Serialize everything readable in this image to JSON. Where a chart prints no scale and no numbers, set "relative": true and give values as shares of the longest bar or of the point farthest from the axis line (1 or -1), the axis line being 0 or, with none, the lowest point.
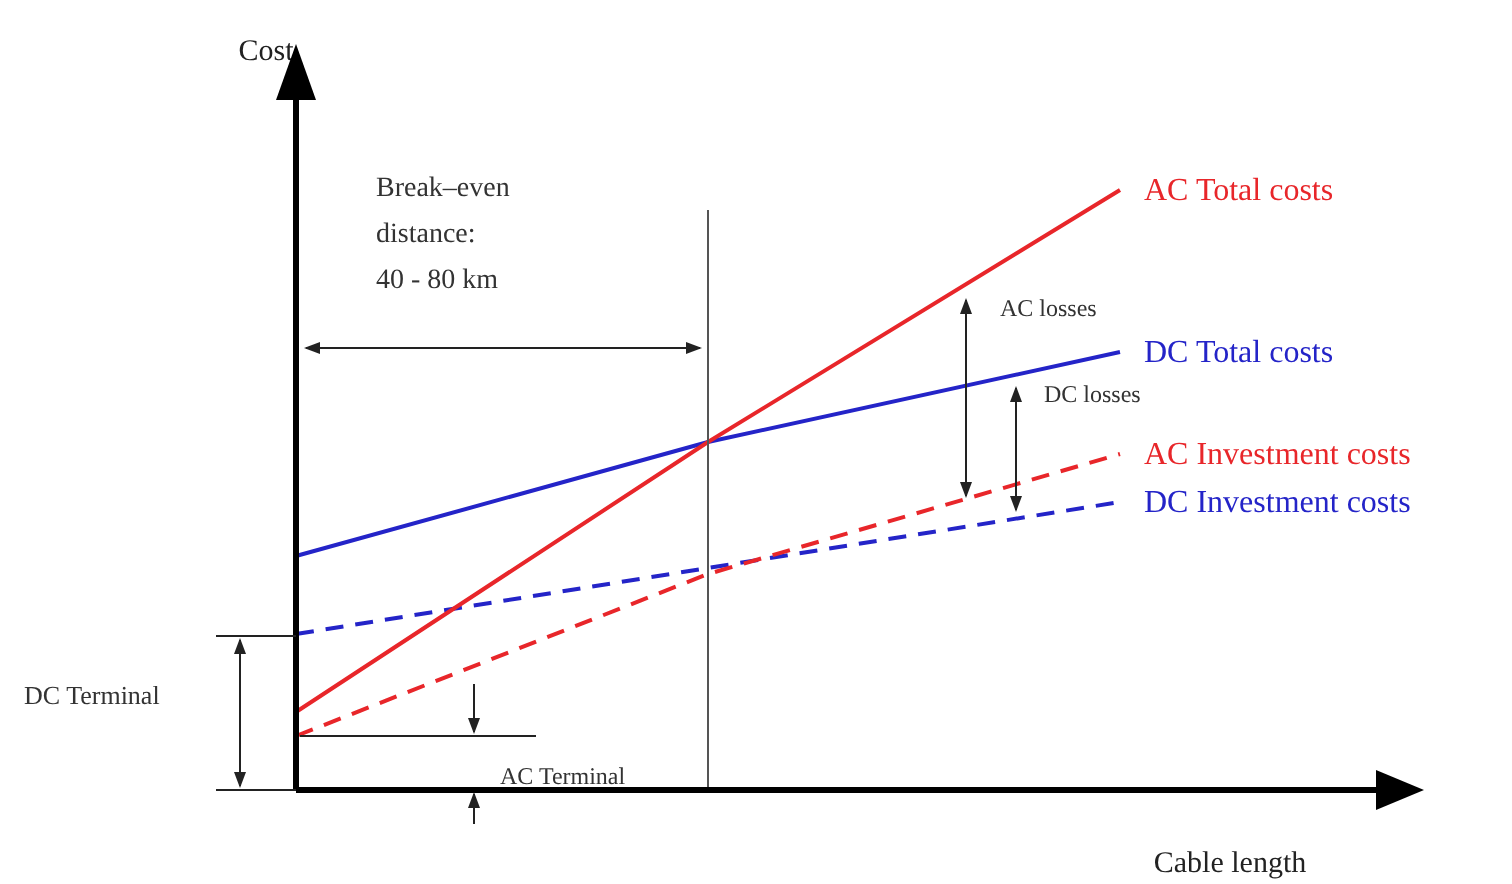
{
  "chart_data": {
    "type": "line",
    "relative": true,
    "xlabel": "Cable length",
    "ylabel": "Cost",
    "categories": [
      null,
      null,
      null
    ],
    "series": [
      {
        "name": "AC Total costs",
        "color": "#e8262a",
        "values": [
          0.13,
          0.58,
          1
        ],
        "line_style": "solid"
      },
      {
        "name": "DC Total costs",
        "color": "#2424c8",
        "values": [
          0.39,
          0.58,
          0.73
        ],
        "line_style": "solid"
      },
      {
        "name": "AC Investment costs",
        "color": "#e8262a",
        "values": [
          0.09,
          0.36,
          0.56
        ],
        "line_style": "dashed"
      },
      {
        "name": "DC Investment costs",
        "color": "#2424c8",
        "values": [
          0.26,
          0.37,
          0.48
        ],
        "line_style": "dashed"
      }
    ],
    "annotations": [
      "Break–even distance: 40 - 80 km",
      "DC Terminal",
      "AC Terminal",
      "AC losses",
      "DC losses"
    ],
    "legend": false,
    "marker": "none"
  }
}
